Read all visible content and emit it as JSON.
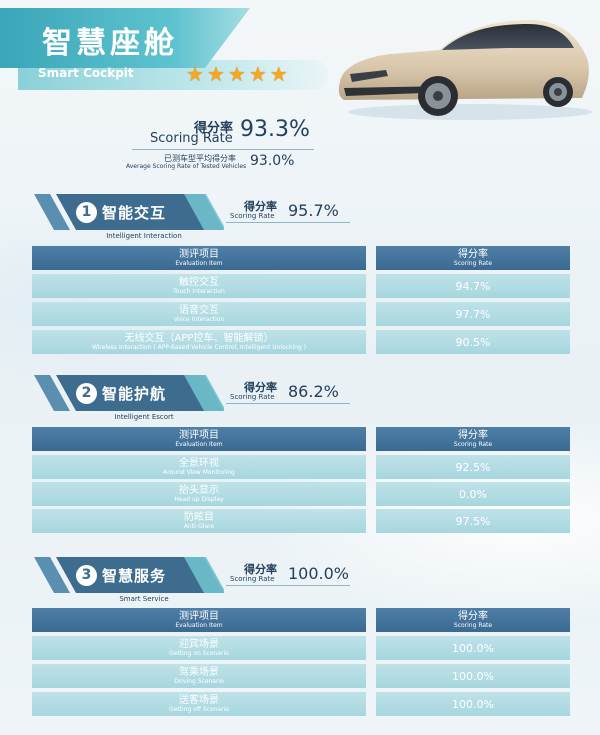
{
  "header": {
    "title": "智慧座舱",
    "subtitle_en": "Smart Cockpit",
    "stars": 5
  },
  "overall": {
    "label_cn": "得分率",
    "label_en": "Scoring Rate",
    "value": "93.3%",
    "avg_label_cn": "已测车型平均得分率",
    "avg_label_en": "Average Scoring Rate of Tested Vehicles",
    "avg_value": "93.0%"
  },
  "table_header": {
    "item_cn": "测评项目",
    "item_en": "Evaluation  Item",
    "rate_cn": "得分率",
    "rate_en": "Scoring Rate"
  },
  "sections": [
    {
      "num": "1",
      "title_cn": "智能交互",
      "title_en": "Intelligent Interaction",
      "score_cn": "得分率",
      "score_en": "Scoring Rate",
      "score": "95.7%",
      "rows": [
        {
          "cn": "触控交互",
          "en": "Touch Interaction",
          "value": "94.7%"
        },
        {
          "cn": "语音交互",
          "en": "Voice Interaction",
          "value": "97.7%"
        },
        {
          "cn": "无线交互（APP控车、智能解锁）",
          "en": "Wireless Interaction ( APP-Based Vehicle Control, Intelligent Unlocking )",
          "value": "90.5%"
        }
      ]
    },
    {
      "num": "2",
      "title_cn": "智能护航",
      "title_en": "Intelligent Escort",
      "score_cn": "得分率",
      "score_en": "Scoring Rate",
      "score": "86.2%",
      "rows": [
        {
          "cn": "全景环视",
          "en": "Around View Monitoring",
          "value": "92.5%"
        },
        {
          "cn": "抬头显示",
          "en": "Head up Display",
          "value": "0.0%"
        },
        {
          "cn": "防眩目",
          "en": "Anti-Glare",
          "value": "97.5%"
        }
      ]
    },
    {
      "num": "3",
      "title_cn": "智慧服务",
      "title_en": "Smart Service",
      "score_cn": "得分率",
      "score_en": "Scoring Rate",
      "score": "100.0%",
      "rows": [
        {
          "cn": "迎宾场景",
          "en": "Getting on Scenario",
          "value": "100.0%"
        },
        {
          "cn": "驾乘场景",
          "en": "Driving Scenario",
          "value": "100.0%"
        },
        {
          "cn": "送客场景",
          "en": "Getting off Scenario",
          "value": "100.0%"
        }
      ]
    }
  ],
  "colors": {
    "banner": "#3aa6b8",
    "table_head": "#3a6a92",
    "table_body": "#a7d6de",
    "star": "#f5a623"
  }
}
